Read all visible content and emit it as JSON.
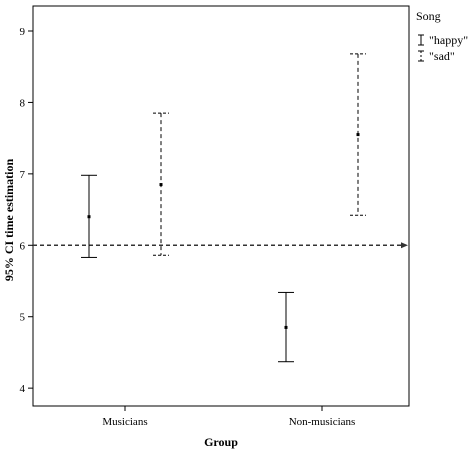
{
  "chart_data": {
    "type": "errorbar",
    "xlabel": "Group",
    "ylabel": "95% CI time estimation",
    "categories": [
      "Musicians",
      "Non-musicians"
    ],
    "ylim": [
      3.75,
      9.35
    ],
    "yticks": [
      "4",
      "5",
      "6",
      "7",
      "8",
      "9"
    ],
    "reference_line": {
      "y": 6.0,
      "style": "dashed"
    },
    "legend": {
      "title": "Song",
      "placement": "top-right"
    },
    "series": [
      {
        "name": "\"happy\"",
        "style": "solid",
        "points": [
          {
            "category": "Musicians",
            "mean": 6.4,
            "lower": 5.83,
            "upper": 6.98
          },
          {
            "category": "Non-musicians",
            "mean": 4.85,
            "lower": 4.37,
            "upper": 5.34
          }
        ]
      },
      {
        "name": "\"sad\"",
        "style": "dashed",
        "points": [
          {
            "category": "Musicians",
            "mean": 6.85,
            "lower": 5.86,
            "upper": 7.85
          },
          {
            "category": "Non-musicians",
            "mean": 7.55,
            "lower": 6.42,
            "upper": 8.68
          }
        ]
      }
    ],
    "grid": false
  }
}
